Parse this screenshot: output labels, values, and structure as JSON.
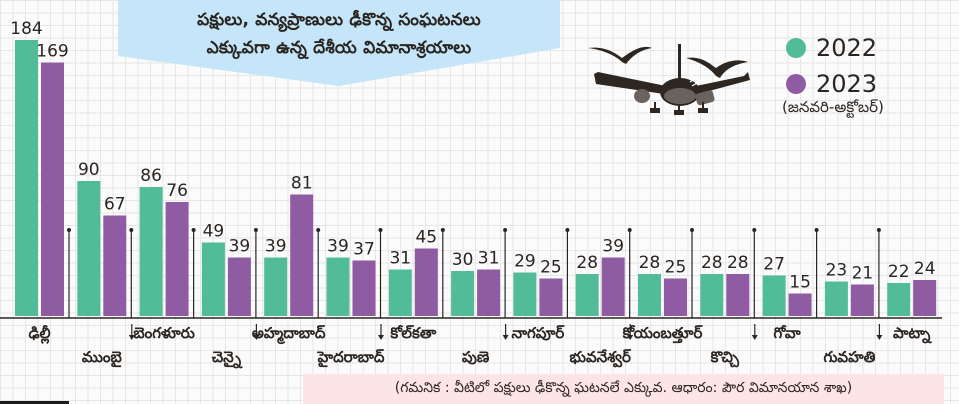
{
  "chart_data": {
    "type": "bar",
    "title": "పక్షులు, వన్యప్రాణులు ఢీకొన్న సంఘటనలు ఎక్కువగా ఉన్న దేశీయ విమానాశ్రయాలు",
    "categories": [
      "ఢిల్లీ",
      "ముంబై",
      "బెంగళూరు",
      "చెన్నై",
      "అహ్మదాబాద్",
      "హైదరాబాద్",
      "కోల్‌కతా",
      "పుణె",
      "నాగపూర్",
      "భువనేశ్వర్",
      "కోయంబత్తూర్",
      "కొచ్చి",
      "గోవా",
      "గువహతి",
      "పాట్నా"
    ],
    "series": [
      {
        "name": "2022",
        "color": "#52bb98",
        "values": [
          184,
          90,
          86,
          49,
          39,
          39,
          31,
          30,
          29,
          28,
          28,
          28,
          27,
          23,
          22
        ]
      },
      {
        "name": "2023",
        "color": "#8f5ca3",
        "values": [
          169,
          67,
          76,
          39,
          81,
          37,
          45,
          31,
          25,
          39,
          25,
          28,
          15,
          21,
          24
        ]
      }
    ],
    "legend_note": "(జనవరి-అక్టోబర్)",
    "legend_position": "top-right",
    "xlabel": "",
    "ylabel": "",
    "ylim": [
      0,
      184
    ],
    "grid": true,
    "label_row": [
      0,
      1,
      0,
      1,
      0,
      1,
      0,
      1,
      0,
      1,
      0,
      1,
      0,
      1,
      0
    ]
  },
  "banner": {
    "line1": "పక్షులు, వన్యప్రాణులు ఢీకొన్న సంఘటనలు",
    "line2": "ఎక్కువగా ఉన్న దేశీయ విమానాశ్రయాలు",
    "color": "#c4e6f8"
  },
  "legend": {
    "items": [
      {
        "label": "2022",
        "color": "#52bb98"
      },
      {
        "label": "2023",
        "color": "#8f5ca3"
      }
    ],
    "note": "(జనవరి-అక్టోబర్)"
  },
  "footnote": "(గమనిక : వీటిలో పక్షులు ఢీకొన్న ఘటనలే ఎక్కువ. ఆధారం: పౌర విమానయాన శాఖ)",
  "illustration": "airplane-with-birds-icon"
}
